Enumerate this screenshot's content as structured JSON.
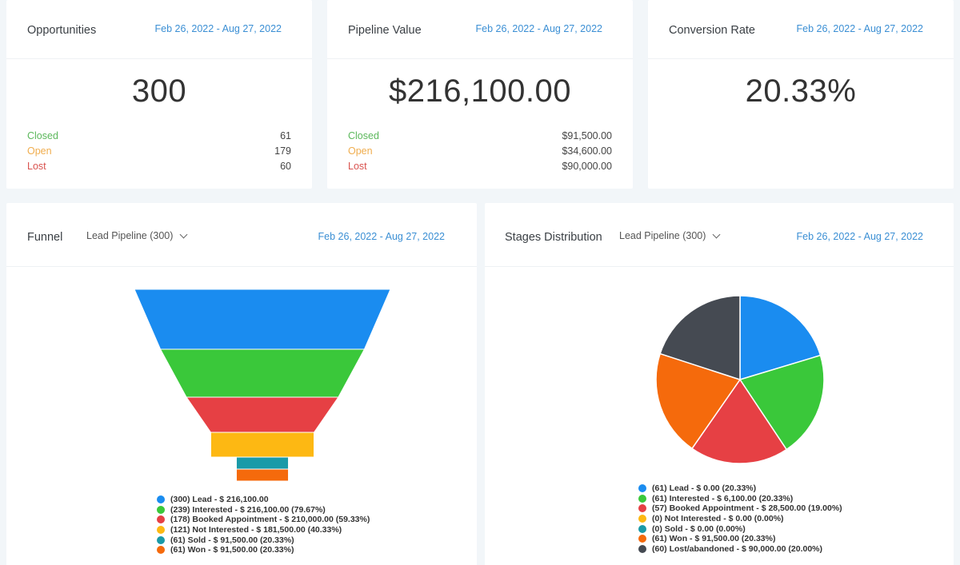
{
  "colors": {
    "blue": "#1a8cf0",
    "green": "#3ac83a",
    "red": "#e64044",
    "yellow": "#fdb813",
    "teal": "#1a9aa8",
    "orange": "#f56a0c",
    "dark": "#454a52",
    "date_link": "#3b8fd4"
  },
  "opportunities": {
    "title": "Opportunities",
    "date_range": "Feb 26, 2022 - Aug 27, 2022",
    "value": "300",
    "rows": [
      {
        "label": "Closed",
        "value": "61"
      },
      {
        "label": "Open",
        "value": "179"
      },
      {
        "label": "Lost",
        "value": "60"
      }
    ]
  },
  "pipeline_value": {
    "title": "Pipeline Value",
    "date_range": "Feb 26, 2022 - Aug 27, 2022",
    "value": "$216,100.00",
    "rows": [
      {
        "label": "Closed",
        "value": "$91,500.00"
      },
      {
        "label": "Open",
        "value": "$34,600.00"
      },
      {
        "label": "Lost",
        "value": "$90,000.00"
      }
    ]
  },
  "conversion_rate": {
    "title": "Conversion Rate",
    "date_range": "Feb 26, 2022 - Aug 27, 2022",
    "value": "20.33%"
  },
  "funnel": {
    "title": "Funnel",
    "pipeline_select": "Lead Pipeline (300)",
    "date_range": "Feb 26, 2022 - Aug 27, 2022",
    "legend": [
      "(300) Lead - $ 216,100.00",
      "(239) Interested - $ 216,100.00 (79.67%)",
      "(178) Booked Appointment - $ 210,000.00 (59.33%)",
      "(121) Not Interested - $ 181,500.00 (40.33%)",
      "(61) Sold - $ 91,500.00 (20.33%)",
      "(61) Won - $ 91,500.00 (20.33%)"
    ]
  },
  "stages": {
    "title": "Stages Distribution",
    "pipeline_select": "Lead Pipeline (300)",
    "date_range": "Feb 26, 2022 - Aug 27, 2022",
    "legend": [
      "(61) Lead - $ 0.00 (20.33%)",
      "(61) Interested - $ 6,100.00 (20.33%)",
      "(57) Booked Appointment - $ 28,500.00 (19.00%)",
      "(0) Not Interested - $ 0.00 (0.00%)",
      "(0) Sold - $ 0.00 (0.00%)",
      "(61) Won - $ 91,500.00 (20.33%)",
      "(60) Lost/abandoned - $ 90,000.00 (20.00%)"
    ]
  },
  "chart_data": [
    {
      "type": "funnel",
      "categories": [
        "Lead",
        "Interested",
        "Booked Appointment",
        "Not Interested",
        "Sold",
        "Won"
      ],
      "values": [
        300,
        239,
        178,
        121,
        61,
        61
      ],
      "colors": [
        "#1a8cf0",
        "#3ac83a",
        "#e64044",
        "#fdb813",
        "#1a9aa8",
        "#f56a0c"
      ]
    },
    {
      "type": "pie",
      "categories": [
        "Lead",
        "Interested",
        "Booked Appointment",
        "Not Interested",
        "Sold",
        "Won",
        "Lost/abandoned"
      ],
      "values": [
        61,
        61,
        57,
        0,
        0,
        61,
        60
      ],
      "colors": [
        "#1a8cf0",
        "#3ac83a",
        "#e64044",
        "#fdb813",
        "#1a9aa8",
        "#f56a0c",
        "#454a52"
      ]
    }
  ]
}
